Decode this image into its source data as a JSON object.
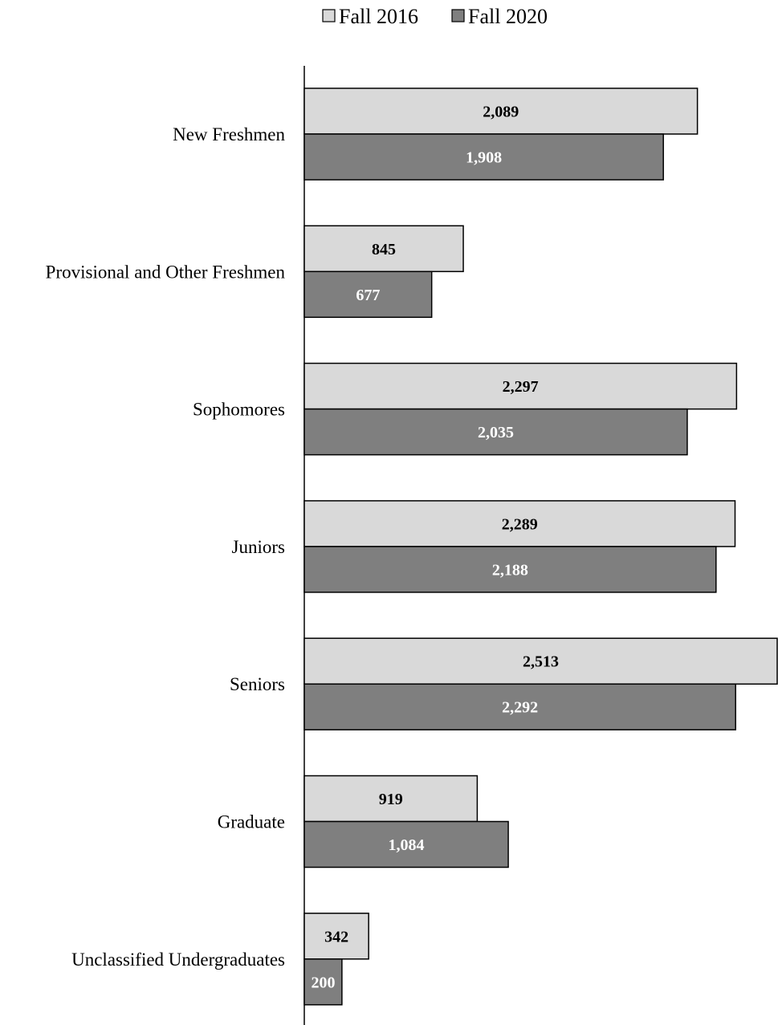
{
  "chart_data": {
    "type": "bar",
    "orientation": "horizontal",
    "categories": [
      "New Freshmen",
      "Provisional and Other Freshmen",
      "Sophomores",
      "Juniors",
      "Seniors",
      "Graduate",
      "Unclassified Undergraduates"
    ],
    "series": [
      {
        "name": "Fall 2016",
        "color": "#d9d9d9",
        "label_color": "#000000",
        "values": [
          2089,
          845,
          2297,
          2289,
          2513,
          919,
          342
        ],
        "labels": [
          "2,089",
          "845",
          "2,297",
          "2,289",
          "2,513",
          "919",
          "342"
        ]
      },
      {
        "name": "Fall 2020",
        "color": "#7f7f7f",
        "label_color": "#ffffff",
        "values": [
          1908,
          677,
          2035,
          2188,
          2292,
          1084,
          200
        ],
        "labels": [
          "1,908",
          "677",
          "2,035",
          "2,188",
          "2,292",
          "1,084",
          "200"
        ]
      }
    ],
    "legend": "top-center",
    "grid": false,
    "xlim": [
      0,
      2513
    ]
  }
}
